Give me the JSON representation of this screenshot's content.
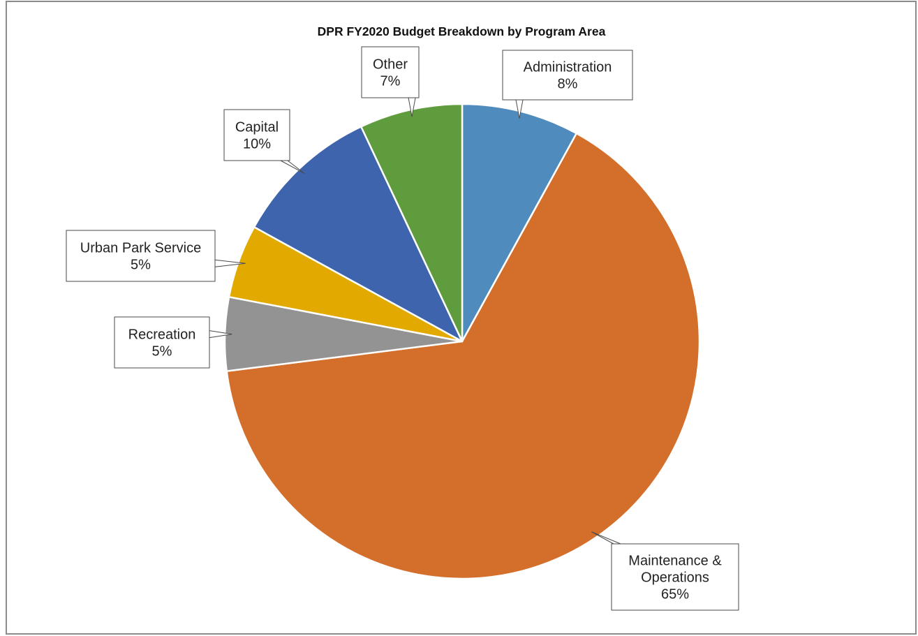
{
  "chart_data": {
    "type": "pie",
    "title": "DPR FY2020 Budget Breakdown by Program Area",
    "slices": [
      {
        "label": "Administration",
        "value": 8,
        "pct_label": "8%",
        "color": "#4f8bbd"
      },
      {
        "label": "Maintenance & Operations",
        "value": 65,
        "pct_label": "65%",
        "color": "#d46f2b"
      },
      {
        "label": "Recreation",
        "value": 5,
        "pct_label": "5%",
        "color": "#939393"
      },
      {
        "label": "Urban Park Service",
        "value": 5,
        "pct_label": "5%",
        "color": "#e2a900"
      },
      {
        "label": "Capital",
        "value": 10,
        "pct_label": "10%",
        "color": "#3e64ad"
      },
      {
        "label": "Other",
        "value": 7,
        "pct_label": "7%",
        "color": "#5f9c3e"
      }
    ],
    "start_angle_deg": 0,
    "direction": "clockwise",
    "legend": "none",
    "data_labels": "callouts"
  }
}
